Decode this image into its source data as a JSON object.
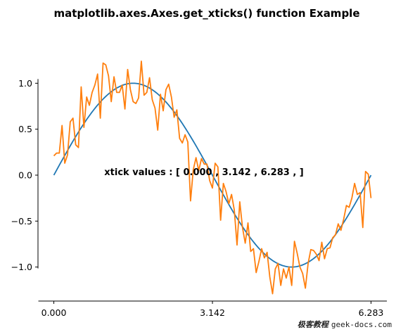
{
  "chart_data": {
    "type": "line",
    "title": "matplotlib.axes.Axes.get_xticks() function Example",
    "xlabel": "",
    "ylabel": "",
    "xlim": [
      -0.314,
      6.597
    ],
    "ylim": [
      -1.37,
      1.37
    ],
    "x_ticks": [
      {
        "value": 0.0,
        "label": "0.000"
      },
      {
        "value": 3.142,
        "label": "3.142"
      },
      {
        "value": 6.283,
        "label": "6.283"
      }
    ],
    "y_ticks": [
      {
        "value": 1.0,
        "label": "1.0"
      },
      {
        "value": 0.5,
        "label": "0.5"
      },
      {
        "value": 0.0,
        "label": "0.0"
      },
      {
        "value": -0.5,
        "label": "−0.5"
      },
      {
        "value": -1.0,
        "label": "−1.0"
      }
    ],
    "annotation": {
      "text": "xtick values : [ 0.000 , 3.142 , 6.283 , ]",
      "x": 1.0,
      "y": 0.0
    },
    "series": [
      {
        "color": "#1f77b4",
        "function": "sin",
        "x_start": 0.0,
        "x_end": 6.283
      },
      {
        "color": "#ff7f0e",
        "x_start": 0.0,
        "x_end": 6.283,
        "values": [
          0.21,
          0.24,
          0.24,
          0.54,
          0.13,
          0.22,
          0.58,
          0.62,
          0.33,
          0.3,
          0.96,
          0.52,
          0.85,
          0.76,
          0.9,
          0.98,
          1.1,
          0.62,
          1.22,
          1.2,
          1.08,
          0.8,
          1.07,
          0.9,
          0.9,
          0.98,
          0.72,
          1.15,
          0.93,
          0.8,
          0.78,
          0.84,
          1.24,
          0.87,
          0.9,
          1.06,
          0.82,
          0.73,
          0.49,
          0.88,
          0.7,
          0.93,
          0.99,
          0.85,
          0.63,
          0.71,
          0.4,
          0.35,
          0.44,
          0.36,
          -0.28,
          0.06,
          0.19,
          0.05,
          0.18,
          0.12,
          0.12,
          -0.06,
          -0.14,
          0.13,
          0.09,
          -0.49,
          -0.09,
          -0.18,
          -0.31,
          -0.21,
          -0.38,
          -0.76,
          -0.29,
          -0.57,
          -0.74,
          -0.52,
          -0.83,
          -0.8,
          -1.06,
          -0.94,
          -0.8,
          -0.9,
          -0.84,
          -1.11,
          -1.29,
          -1.02,
          -0.96,
          -1.2,
          -1.02,
          -1.12,
          -1.0,
          -1.2,
          -0.72,
          -0.85,
          -1.0,
          -1.07,
          -1.23,
          -0.96,
          -0.81,
          -0.82,
          -0.86,
          -0.93,
          -0.73,
          -0.91,
          -0.8,
          -0.79,
          -0.68,
          -0.65,
          -0.53,
          -0.6,
          -0.48,
          -0.33,
          -0.35,
          -0.25,
          -0.09,
          -0.21,
          -0.19,
          -0.57,
          0.04,
          0.01,
          -0.25
        ]
      }
    ]
  },
  "watermark": {
    "cn": "极客教程",
    "url": "geek-docs.com"
  }
}
